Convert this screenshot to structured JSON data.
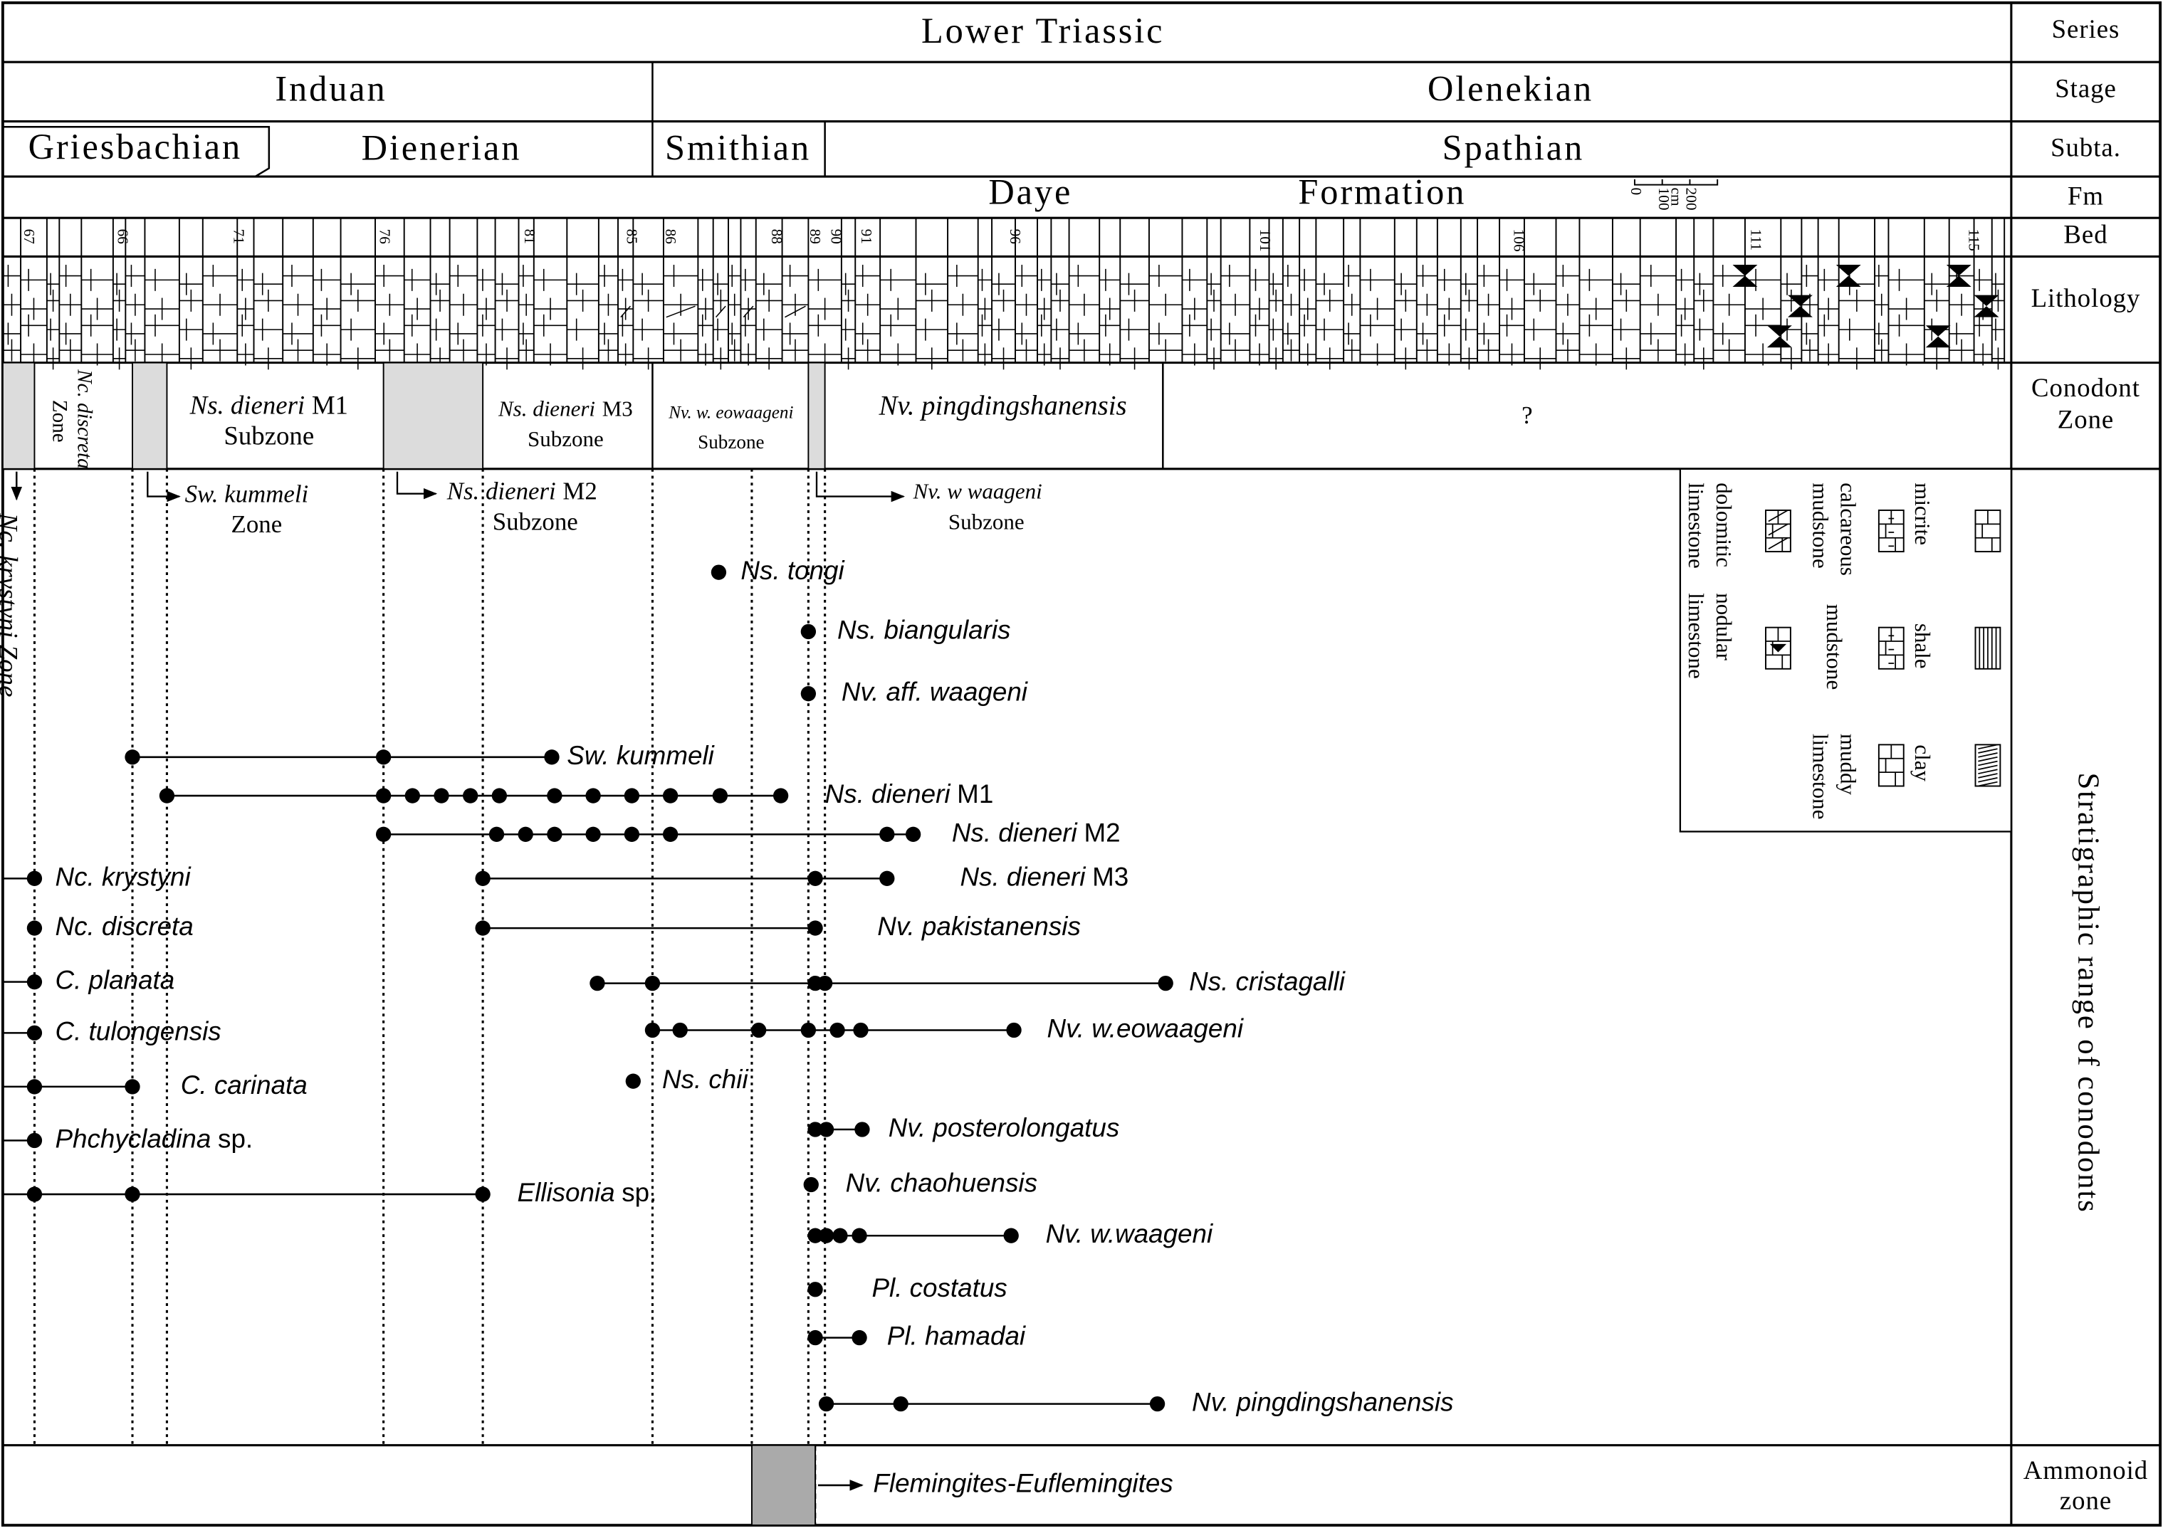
{
  "header": {
    "series": "Lower Triassic",
    "stages": [
      "Induan",
      "Olenekian"
    ],
    "substages": [
      "Griesbachian",
      "Dienerian",
      "Smithian",
      "Spathian"
    ],
    "formation": [
      "Daye",
      "Formation"
    ],
    "scale": [
      "0",
      "100",
      "200",
      "cm"
    ]
  },
  "row_labels": [
    "Series",
    "Stage",
    "Subta.",
    "Fm",
    "Bed",
    "Lithology",
    [
      "Conodont",
      "Zone"
    ],
    "Stratigraphic range of conodonts",
    [
      "Ammonoid",
      "zone"
    ]
  ],
  "beds": [
    "67",
    "66",
    "71",
    "76",
    "81",
    "85",
    "86",
    "88",
    "89",
    "90",
    "91",
    "96",
    "101",
    "106",
    "111",
    "115"
  ],
  "conodont_zones": [
    {
      "name": "Nc. discreta",
      "rank": "Zone"
    },
    {
      "name": "Ns. dieneri",
      "qualifier": "M1",
      "rank": "Subzone"
    },
    {
      "name": "Ns. dieneri",
      "qualifier": "M3",
      "rank": "Subzone"
    },
    {
      "name": "Nv. w. eowaageni",
      "rank": "Subzone"
    },
    {
      "name": "Nv. pingdingshanensis"
    },
    {
      "name": "?"
    }
  ],
  "zone_annotations": [
    {
      "name": "Nc. krystyni Zone"
    },
    {
      "name": "Sw. kummeli",
      "rank": "Zone"
    },
    {
      "name": "Ns. dieneri",
      "qualifier": "M2",
      "rank": "Subzone"
    },
    {
      "name": "Nv. w waageni",
      "rank": "Subzone"
    }
  ],
  "species": [
    {
      "name": "Ns. tongi"
    },
    {
      "name": "Ns. biangularis"
    },
    {
      "name": "Nv. aff. waageni"
    },
    {
      "name": "Sw. kummeli"
    },
    {
      "name": "Ns. dieneri",
      "qualifier": "M1"
    },
    {
      "name": "Ns. dieneri",
      "qualifier": "M2"
    },
    {
      "name": "Ns. dieneri",
      "qualifier": "M3"
    },
    {
      "name": "Nc. krystyni"
    },
    {
      "name": "Nc. discreta"
    },
    {
      "name": "Nv. pakistanensis"
    },
    {
      "name": "C. planata"
    },
    {
      "name": "Ns. cristagalli"
    },
    {
      "name": "C. tulongensis"
    },
    {
      "name": "Nv. w.eowaageni"
    },
    {
      "name": "C. carinata"
    },
    {
      "name": "Ns. chii"
    },
    {
      "name": "Phchycladina",
      "qualifier": "sp."
    },
    {
      "name": "Nv. posterolongatus"
    },
    {
      "name": "Ellisonia",
      "qualifier": "sp."
    },
    {
      "name": "Nv. chaohuensis"
    },
    {
      "name": "Nv. w.waageni"
    },
    {
      "name": "Pl. costatus"
    },
    {
      "name": "Pl. hamadai"
    },
    {
      "name": "Nv. pingdingshanensis"
    }
  ],
  "legend": [
    [
      "micrite"
    ],
    [
      "shale"
    ],
    [
      "clay"
    ],
    [
      "calcareous",
      "mudstone"
    ],
    [
      "mudstone"
    ],
    [
      "muddy",
      "limestone"
    ],
    [
      "dolomitic",
      "limestone"
    ],
    [
      "nodular",
      "limestone"
    ]
  ],
  "ammonoid_zone": "Flemingites-Euflemingites"
}
